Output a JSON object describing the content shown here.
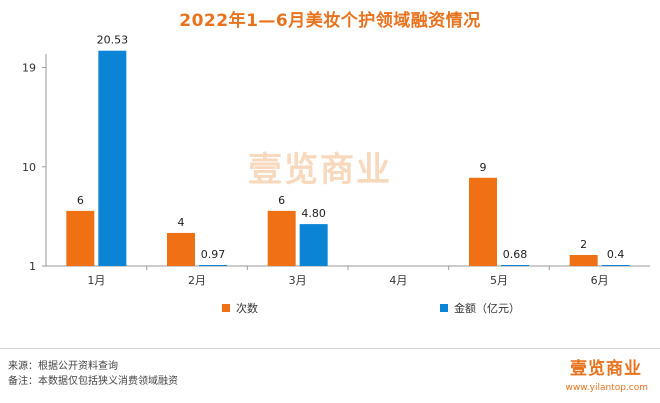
{
  "watermark": "壹览商业",
  "chart_data": {
    "type": "bar",
    "title": "2022年1—6月美妆个护领域融资情况",
    "categories": [
      "1月",
      "2月",
      "3月",
      "4月",
      "5月",
      "6月"
    ],
    "series": [
      {
        "name": "次数",
        "values": [
          6,
          4,
          6,
          null,
          9,
          2
        ],
        "labels": [
          "6",
          "4",
          "6",
          "",
          "9",
          "2"
        ],
        "color": "#f07113"
      },
      {
        "name": "金额（亿元）",
        "values": [
          20.53,
          0.97,
          4.8,
          null,
          0.68,
          0.4
        ],
        "labels": [
          "20.53",
          "0.97",
          "4.80",
          "",
          "0.68",
          "0.4"
        ],
        "color": "#0b84d6"
      }
    ],
    "y_ticks": [
      1,
      10,
      19
    ],
    "ylim": [
      1,
      21.5
    ],
    "grid": false,
    "legend_position": "bottom"
  },
  "footer": {
    "source": "来源：根据公开资料查询",
    "note": "备注：本数据仅包括狭义消费领域融资",
    "logo": "壹览商业",
    "url": "www.yilantop.com"
  }
}
